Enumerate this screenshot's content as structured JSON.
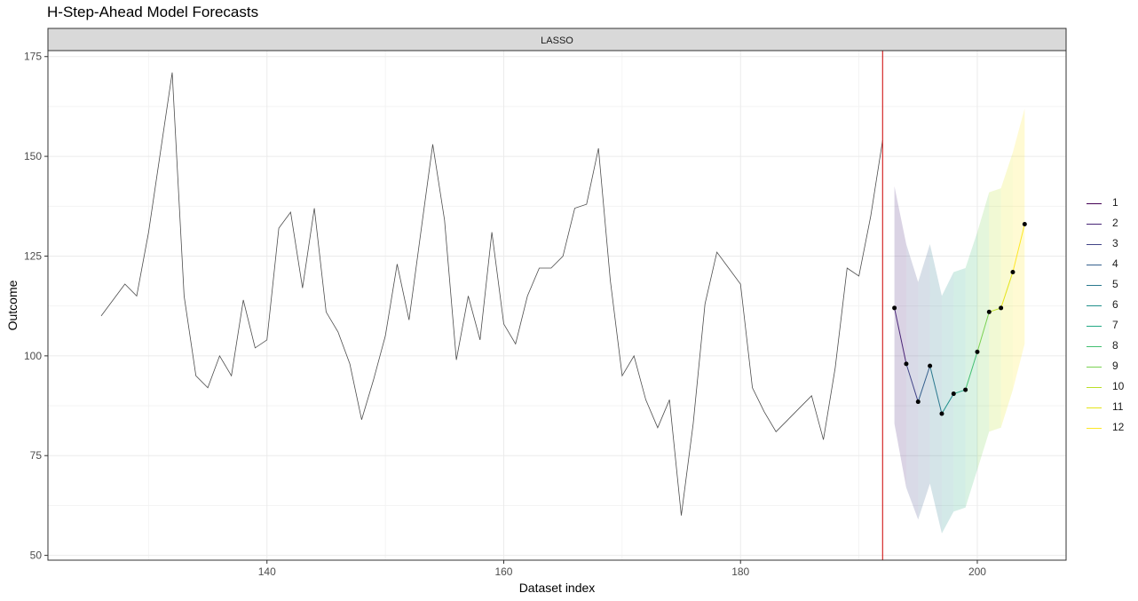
{
  "title": "H-Step-Ahead Model Forecasts",
  "chart_data": {
    "type": "line",
    "title": "H-Step-Ahead Model Forecasts",
    "facet_label": "LASSO",
    "xlabel": "Dataset index",
    "ylabel": "Outcome",
    "xlim": [
      121.5,
      207.5
    ],
    "ylim": [
      48.8,
      176.5
    ],
    "x_ticks": [
      140,
      160,
      180,
      200
    ],
    "y_ticks": [
      50,
      75,
      100,
      125,
      150,
      175
    ],
    "grid": true,
    "legend_position": "right",
    "forecast_origin": 192,
    "forecast_origin_color": "#cc0000",
    "history": {
      "color": "#4d4d4d",
      "x": [
        126,
        127,
        128,
        129,
        130,
        131,
        132,
        133,
        134,
        135,
        136,
        137,
        138,
        139,
        140,
        141,
        142,
        143,
        144,
        145,
        146,
        147,
        148,
        149,
        150,
        151,
        152,
        153,
        154,
        155,
        156,
        157,
        158,
        159,
        160,
        161,
        162,
        163,
        164,
        165,
        166,
        167,
        168,
        169,
        170,
        171,
        172,
        173,
        174,
        175,
        176,
        177,
        178,
        179,
        180,
        181,
        182,
        183,
        184,
        185,
        186,
        187,
        188,
        189,
        190,
        191,
        192
      ],
      "y": [
        110,
        114,
        118,
        115,
        131,
        151,
        171,
        115,
        95,
        92,
        100,
        95,
        114,
        102,
        104,
        132,
        136,
        117,
        137,
        111,
        106,
        98,
        84,
        94,
        105,
        123,
        109,
        131,
        153,
        134,
        99,
        115,
        104,
        131,
        108,
        103,
        115,
        122,
        122,
        125,
        137,
        138,
        152,
        119,
        95,
        100,
        89,
        82,
        89,
        60,
        83,
        113,
        126,
        122,
        118,
        92,
        86,
        81,
        84,
        87,
        90,
        79,
        97,
        122,
        120,
        135,
        154
      ]
    },
    "forecast": {
      "x": [
        193,
        194,
        195,
        196,
        197,
        198,
        199,
        200,
        201,
        202,
        203,
        204
      ],
      "y": [
        112,
        98,
        88.5,
        97.5,
        85.5,
        90.5,
        91.5,
        101,
        111,
        112,
        121,
        133
      ],
      "lower": [
        83,
        67,
        59,
        68,
        55.5,
        61,
        62,
        71.5,
        81,
        82,
        91.5,
        103
      ],
      "upper": [
        142.5,
        128,
        118.5,
        128,
        115,
        121,
        122,
        131,
        141,
        142,
        151,
        162
      ],
      "horizons": [
        "1",
        "2",
        "3",
        "4",
        "5",
        "6",
        "7",
        "8",
        "9",
        "10",
        "11",
        "12"
      ],
      "colors": [
        "#440154",
        "#482576",
        "#414487",
        "#35608d",
        "#2a788e",
        "#21908c",
        "#22a884",
        "#43bf71",
        "#7ad151",
        "#bbdf27",
        "#e4e419",
        "#fde725"
      ]
    }
  }
}
